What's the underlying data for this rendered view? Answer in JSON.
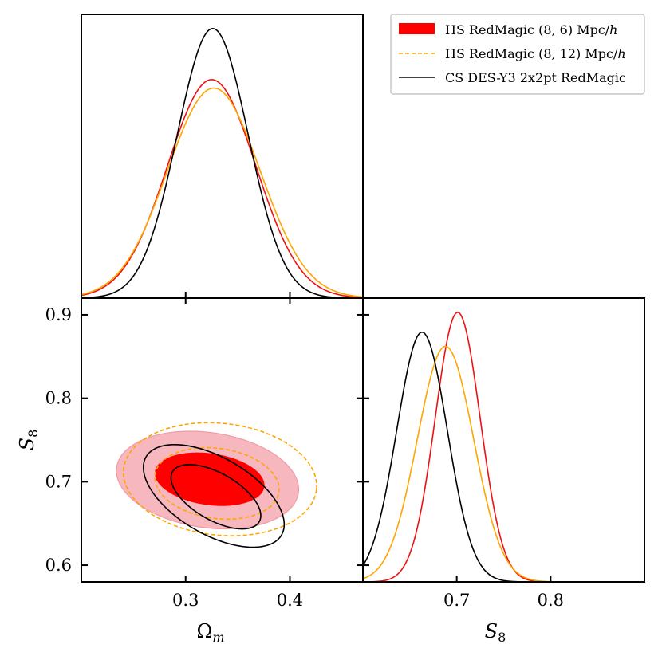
{
  "chart_data": [
    {
      "panel": "omega_m-marginal",
      "type": "line",
      "x_param": "Ω_m",
      "xlim": [
        0.2,
        0.47
      ],
      "series": [
        {
          "name": "HS RedMagic (8, 6) Mpc/h",
          "color": "#ee1111",
          "mean": 0.325,
          "sigma": 0.0423,
          "peak": 0.77
        },
        {
          "name": "HS RedMagic (8, 12) Mpc/h",
          "color": "#ffa500",
          "mean": 0.327,
          "sigma": 0.0445,
          "peak": 0.74
        },
        {
          "name": "CS DES-Y3 2x2pt RedMagic",
          "color": "#000000",
          "mean": 0.326,
          "sigma": 0.034,
          "peak": 0.95
        }
      ]
    },
    {
      "panel": "omega_m-S8-contours",
      "type": "scatter",
      "xlabel": "Ωm",
      "ylabel": "S8",
      "xlim": [
        0.2,
        0.47
      ],
      "ylim": [
        0.58,
        0.92
      ],
      "xticks": [
        "0.3",
        "0.4"
      ],
      "yticks": [
        "0.6",
        "0.7",
        "0.8",
        "0.9"
      ],
      "contours": [
        {
          "series": "HS RedMagic (8, 6) Mpc/h",
          "level": "95%",
          "style": "filled",
          "color": "#f7b7bf",
          "center": [
            0.321,
            0.702
          ],
          "half_widths": [
            0.088,
            0.057
          ],
          "tilt_deg": -8
        },
        {
          "series": "HS RedMagic (8, 6) Mpc/h",
          "level": "68%",
          "style": "filled",
          "color": "#ff0000",
          "center": [
            0.323,
            0.703
          ],
          "half_widths": [
            0.053,
            0.031
          ],
          "tilt_deg": -8
        },
        {
          "series": "HS RedMagic (8, 12) Mpc/h",
          "level": "95%",
          "style": "dashed",
          "color": "#ffa500",
          "center": [
            0.333,
            0.703
          ],
          "half_widths": [
            0.093,
            0.067
          ],
          "tilt_deg": -6
        },
        {
          "series": "HS RedMagic (8, 12) Mpc/h",
          "level": "68%",
          "style": "dashed",
          "color": "#ffa500",
          "center": [
            0.33,
            0.698
          ],
          "half_widths": [
            0.06,
            0.042
          ],
          "tilt_deg": -8
        },
        {
          "series": "CS DES-Y3 2x2pt RedMagic",
          "level": "95%",
          "style": "line",
          "color": "#000000",
          "center": [
            0.327,
            0.683
          ],
          "half_widths": [
            0.075,
            0.046
          ],
          "tilt_deg": -30
        },
        {
          "series": "CS DES-Y3 2x2pt RedMagic",
          "level": "68%",
          "style": "line",
          "color": "#000000",
          "center": [
            0.329,
            0.682
          ],
          "half_widths": [
            0.048,
            0.028
          ],
          "tilt_deg": -30
        }
      ]
    },
    {
      "panel": "S8-marginal",
      "type": "line",
      "xlabel": "S8",
      "xlim": [
        0.6,
        0.9
      ],
      "xticks": [
        "0.7",
        "0.8"
      ],
      "series": [
        {
          "name": "HS RedMagic (8, 6) Mpc/h",
          "color": "#ee1111",
          "mean": 0.701,
          "sigma": 0.024,
          "peak": 0.95
        },
        {
          "name": "HS RedMagic (8, 12) Mpc/h",
          "color": "#ffa500",
          "mean": 0.688,
          "sigma": 0.03,
          "peak": 0.83
        },
        {
          "name": "CS DES-Y3 2x2pt RedMagic",
          "color": "#000000",
          "mean": 0.663,
          "sigma": 0.027,
          "peak": 0.88
        }
      ]
    }
  ],
  "legend": {
    "placement": "top-right",
    "entries": [
      {
        "label": "HS RedMagic (8, 6) Mpc/",
        "italic_suffix": "h",
        "style": "filled",
        "color": "#ff0000"
      },
      {
        "label": "HS RedMagic (8, 12) Mpc/",
        "italic_suffix": "h",
        "style": "dashed",
        "color": "#ffa500"
      },
      {
        "label": "CS DES-Y3 2x2pt RedMagic",
        "italic_suffix": "",
        "style": "line",
        "color": "#000000"
      }
    ]
  },
  "axis_titles": {
    "x_left_main": "Ω",
    "x_left_sub": "m",
    "x_right_main": "S",
    "x_right_sub": "8",
    "y_main": "S",
    "y_sub": "8"
  }
}
